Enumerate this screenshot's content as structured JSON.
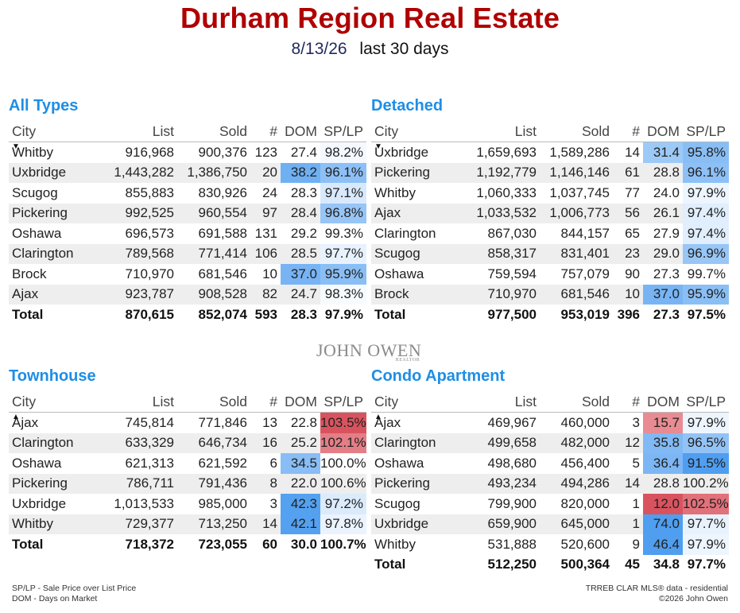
{
  "header": {
    "title": "Durham Region Real Estate",
    "date": "8/13/26",
    "period": "last 30 days"
  },
  "columns": {
    "city": "City",
    "list": "List",
    "sold": "Sold",
    "count": "#",
    "dom": "DOM",
    "splp": "SP/LP"
  },
  "sort_icons": {
    "down": "▼",
    "up": "▲"
  },
  "panels": [
    {
      "title": "All Types",
      "sort": "down",
      "rows": [
        {
          "city": "Whitby",
          "list": "916,968",
          "sold": "900,376",
          "count": "123",
          "dom": "27.4",
          "splp": "98.2%"
        },
        {
          "city": "Uxbridge",
          "list": "1,443,282",
          "sold": "1,386,750",
          "count": "20",
          "dom": "38.2",
          "splp": "96.1%"
        },
        {
          "city": "Scugog",
          "list": "855,883",
          "sold": "830,926",
          "count": "24",
          "dom": "28.3",
          "splp": "97.1%"
        },
        {
          "city": "Pickering",
          "list": "992,525",
          "sold": "960,554",
          "count": "97",
          "dom": "28.4",
          "splp": "96.8%"
        },
        {
          "city": "Oshawa",
          "list": "696,573",
          "sold": "691,588",
          "count": "131",
          "dom": "29.2",
          "splp": "99.3%"
        },
        {
          "city": "Clarington",
          "list": "789,568",
          "sold": "771,414",
          "count": "106",
          "dom": "28.5",
          "splp": "97.7%"
        },
        {
          "city": "Brock",
          "list": "710,970",
          "sold": "681,546",
          "count": "10",
          "dom": "37.0",
          "splp": "95.9%"
        },
        {
          "city": "Ajax",
          "list": "923,787",
          "sold": "908,528",
          "count": "82",
          "dom": "24.7",
          "splp": "98.3%"
        }
      ],
      "total": {
        "city": "Total",
        "list": "870,615",
        "sold": "852,074",
        "count": "593",
        "dom": "28.3",
        "splp": "97.9%"
      }
    },
    {
      "title": "Detached",
      "sort": "down",
      "rows": [
        {
          "city": "Uxbridge",
          "list": "1,659,693",
          "sold": "1,589,286",
          "count": "14",
          "dom": "31.4",
          "splp": "95.8%"
        },
        {
          "city": "Pickering",
          "list": "1,192,779",
          "sold": "1,146,146",
          "count": "61",
          "dom": "28.8",
          "splp": "96.1%"
        },
        {
          "city": "Whitby",
          "list": "1,060,333",
          "sold": "1,037,745",
          "count": "77",
          "dom": "24.0",
          "splp": "97.9%"
        },
        {
          "city": "Ajax",
          "list": "1,033,532",
          "sold": "1,006,773",
          "count": "56",
          "dom": "26.1",
          "splp": "97.4%"
        },
        {
          "city": "Clarington",
          "list": "867,030",
          "sold": "844,157",
          "count": "65",
          "dom": "27.9",
          "splp": "97.4%"
        },
        {
          "city": "Scugog",
          "list": "858,317",
          "sold": "831,401",
          "count": "23",
          "dom": "29.0",
          "splp": "96.9%"
        },
        {
          "city": "Oshawa",
          "list": "759,594",
          "sold": "757,079",
          "count": "90",
          "dom": "27.3",
          "splp": "99.7%"
        },
        {
          "city": "Brock",
          "list": "710,970",
          "sold": "681,546",
          "count": "10",
          "dom": "37.0",
          "splp": "95.9%"
        }
      ],
      "total": {
        "city": "Total",
        "list": "977,500",
        "sold": "953,019",
        "count": "396",
        "dom": "27.3",
        "splp": "97.5%"
      }
    },
    {
      "title": "Townhouse",
      "sort": "up",
      "rows": [
        {
          "city": "Ajax",
          "list": "745,814",
          "sold": "771,846",
          "count": "13",
          "dom": "22.8",
          "splp": "103.5%"
        },
        {
          "city": "Clarington",
          "list": "633,329",
          "sold": "646,734",
          "count": "16",
          "dom": "25.2",
          "splp": "102.1%"
        },
        {
          "city": "Oshawa",
          "list": "621,313",
          "sold": "621,592",
          "count": "6",
          "dom": "34.5",
          "splp": "100.0%"
        },
        {
          "city": "Pickering",
          "list": "786,711",
          "sold": "791,436",
          "count": "8",
          "dom": "22.0",
          "splp": "100.6%"
        },
        {
          "city": "Uxbridge",
          "list": "1,013,533",
          "sold": "985,000",
          "count": "3",
          "dom": "42.3",
          "splp": "97.2%"
        },
        {
          "city": "Whitby",
          "list": "729,377",
          "sold": "713,250",
          "count": "14",
          "dom": "42.1",
          "splp": "97.8%"
        }
      ],
      "total": {
        "city": "Total",
        "list": "718,372",
        "sold": "723,055",
        "count": "60",
        "dom": "30.0",
        "splp": "100.7%"
      }
    },
    {
      "title": "Condo Apartment",
      "sort": "up",
      "rows": [
        {
          "city": "Ajax",
          "list": "469,967",
          "sold": "460,000",
          "count": "3",
          "dom": "15.7",
          "splp": "97.9%"
        },
        {
          "city": "Clarington",
          "list": "499,658",
          "sold": "482,000",
          "count": "12",
          "dom": "35.8",
          "splp": "96.5%"
        },
        {
          "city": "Oshawa",
          "list": "498,680",
          "sold": "456,400",
          "count": "5",
          "dom": "36.4",
          "splp": "91.5%"
        },
        {
          "city": "Pickering",
          "list": "493,234",
          "sold": "494,286",
          "count": "14",
          "dom": "28.8",
          "splp": "100.2%"
        },
        {
          "city": "Scugog",
          "list": "799,900",
          "sold": "820,000",
          "count": "1",
          "dom": "12.0",
          "splp": "102.5%"
        },
        {
          "city": "Uxbridge",
          "list": "659,900",
          "sold": "645,000",
          "count": "1",
          "dom": "74.0",
          "splp": "97.7%"
        },
        {
          "city": "Whitby",
          "list": "531,888",
          "sold": "520,600",
          "count": "9",
          "dom": "46.4",
          "splp": "97.9%"
        }
      ],
      "total": {
        "city": "Total",
        "list": "512,250",
        "sold": "500,364",
        "count": "45",
        "dom": "34.8",
        "splp": "97.7%"
      }
    }
  ],
  "logo": {
    "name": "JOHN OWEN",
    "sub": "REALTOR"
  },
  "footer": {
    "legend_line1": "SP/LP - Sale Price over List Price",
    "legend_line2": "DOM - Days on Market",
    "source_line1": "TRREB CLAR MLS® data - residential",
    "source_line2": "©2026 John Owen"
  },
  "colors": {
    "title": "#b00000",
    "panel_title": "#1e8ee6",
    "highlight_blue": "#4f9ef0",
    "highlight_red": "#d9535e"
  }
}
